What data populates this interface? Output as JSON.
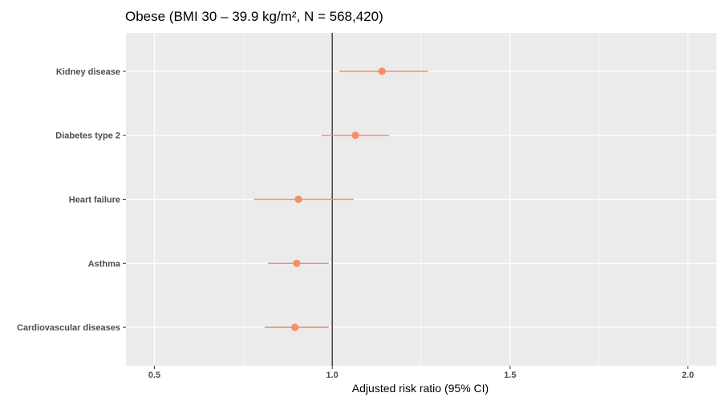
{
  "chart_data": {
    "type": "scatter",
    "title": "Obese (BMI 30 – 39.9 kg/m², N = 568,420)",
    "xlabel": "Adjusted risk ratio (95% CI)",
    "ylabel": "",
    "xlim": [
      0.42,
      2.08
    ],
    "x_ticks": [
      0.5,
      1.0,
      1.5,
      2.0
    ],
    "x_tick_labels": [
      "0.5",
      "1.0",
      "1.5",
      "2.0"
    ],
    "reference_line": 1.0,
    "grid": true,
    "categories": [
      "Kidney disease",
      "Diabetes type 2",
      "Heart failure",
      "Asthma",
      "Cardiovascular diseases"
    ],
    "series": [
      {
        "estimate": [
          1.14,
          1.065,
          0.905,
          0.9,
          0.895
        ],
        "ci_low": [
          1.02,
          0.97,
          0.78,
          0.82,
          0.81
        ],
        "ci_high": [
          1.27,
          1.16,
          1.06,
          0.99,
          0.99
        ]
      }
    ],
    "colors": {
      "point": "#f98d62",
      "panel": "#ebebeb",
      "grid": "#ffffff",
      "reference": "#000000"
    }
  }
}
